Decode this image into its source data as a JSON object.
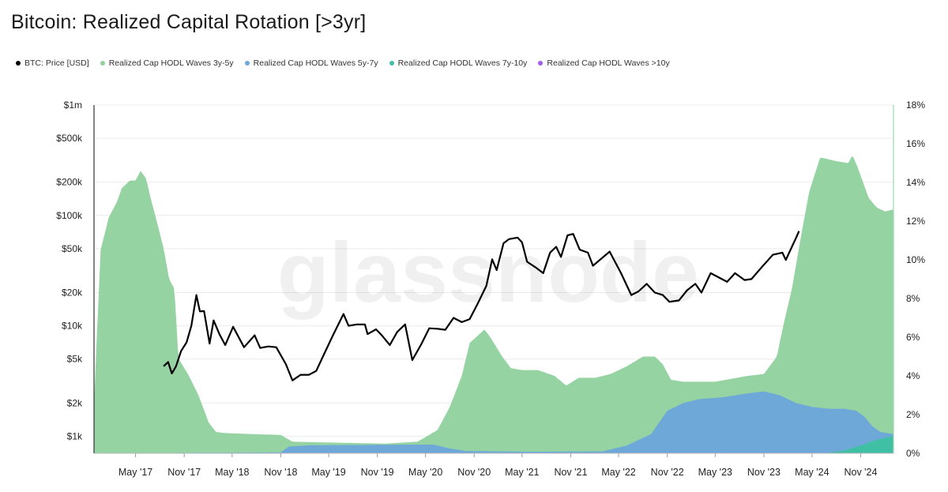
{
  "chart_data": {
    "type": "area",
    "title": "Bitcoin: Realized Capital Rotation [>3yr]",
    "watermark": "glassnode",
    "x_ticks": [
      "May '17",
      "Nov '17",
      "May '18",
      "Nov '18",
      "May '19",
      "Nov '19",
      "May '20",
      "Nov '20",
      "May '21",
      "Nov '21",
      "May '22",
      "Nov '22",
      "May '23",
      "Nov '23",
      "May '24",
      "Nov '24"
    ],
    "y_left": {
      "scale": "log",
      "min": 700,
      "max": 1000000,
      "ticks": [
        "$1k",
        "$2k",
        "$5k",
        "$10k",
        "$20k",
        "$50k",
        "$100k",
        "$200k",
        "$500k",
        "$1m"
      ]
    },
    "y_right": {
      "scale": "linear",
      "min": 0,
      "max": 18,
      "ticks": [
        "0%",
        "2%",
        "4%",
        "6%",
        "8%",
        "10%",
        "12%",
        "14%",
        "16%",
        "18%"
      ]
    },
    "legend_position": "top-left",
    "series": [
      {
        "name": "Realized Cap HODL Waves 3y-5y",
        "color": "#8fd19e",
        "axis": "right",
        "points": [
          [
            "2016-11-25",
            2.6
          ],
          [
            "2016-12-20",
            10.5
          ],
          [
            "2017-01-20",
            12.2
          ],
          [
            "2017-02-20",
            13.0
          ],
          [
            "2017-03-10",
            13.7
          ],
          [
            "2017-04-10",
            14.1
          ],
          [
            "2017-05-01",
            14.1
          ],
          [
            "2017-05-20",
            14.6
          ],
          [
            "2017-06-10",
            14.2
          ],
          [
            "2017-06-25",
            13.3
          ],
          [
            "2017-07-20",
            12.0
          ],
          [
            "2017-08-15",
            10.6
          ],
          [
            "2017-09-05",
            9.0
          ],
          [
            "2017-09-25",
            8.5
          ],
          [
            "2017-10-10",
            4.9
          ],
          [
            "2017-11-15",
            4.1
          ],
          [
            "2017-12-25",
            3.0
          ],
          [
            "2018-02-01",
            1.6
          ],
          [
            "2018-03-01",
            1.1
          ],
          [
            "2018-04-01",
            1.05
          ],
          [
            "2018-07-01",
            1.0
          ],
          [
            "2018-11-01",
            0.95
          ],
          [
            "2018-12-15",
            0.6
          ],
          [
            "2019-06-01",
            0.55
          ],
          [
            "2019-12-01",
            0.5
          ],
          [
            "2020-04-01",
            0.6
          ],
          [
            "2020-06-15",
            1.2
          ],
          [
            "2020-08-01",
            2.4
          ],
          [
            "2020-09-15",
            4.0
          ],
          [
            "2020-10-15",
            5.7
          ],
          [
            "2020-12-10",
            6.4
          ],
          [
            "2021-01-01",
            6.0
          ],
          [
            "2021-02-15",
            5.0
          ],
          [
            "2021-03-20",
            4.4
          ],
          [
            "2021-05-01",
            4.3
          ],
          [
            "2021-07-01",
            4.3
          ],
          [
            "2021-09-01",
            4.0
          ],
          [
            "2021-10-15",
            3.5
          ],
          [
            "2021-12-01",
            3.9
          ],
          [
            "2022-02-01",
            3.9
          ],
          [
            "2022-04-01",
            4.1
          ],
          [
            "2022-06-01",
            4.5
          ],
          [
            "2022-08-01",
            5.0
          ],
          [
            "2022-09-15",
            5.0
          ],
          [
            "2022-10-15",
            4.6
          ],
          [
            "2022-11-15",
            3.8
          ],
          [
            "2023-01-01",
            3.7
          ],
          [
            "2023-05-01",
            3.7
          ],
          [
            "2023-09-01",
            4.0
          ],
          [
            "2023-11-01",
            4.1
          ],
          [
            "2023-12-20",
            5.0
          ],
          [
            "2024-01-15",
            6.7
          ],
          [
            "2024-02-15",
            8.5
          ],
          [
            "2024-03-15",
            10.8
          ],
          [
            "2024-04-20",
            13.5
          ],
          [
            "2024-06-01",
            15.3
          ],
          [
            "2024-08-01",
            15.1
          ],
          [
            "2024-09-15",
            15.0
          ],
          [
            "2024-10-01",
            15.4
          ],
          [
            "2024-10-20",
            14.8
          ],
          [
            "2024-12-01",
            13.2
          ],
          [
            "2025-01-01",
            12.7
          ],
          [
            "2025-02-01",
            12.5
          ],
          [
            "2025-03-05",
            12.6
          ]
        ]
      },
      {
        "name": "Realized Cap HODL Waves 5y-7y",
        "color": "#6ea8d8",
        "axis": "right",
        "points": [
          [
            "2016-11-25",
            0
          ],
          [
            "2018-11-01",
            0.05
          ],
          [
            "2018-12-01",
            0.35
          ],
          [
            "2019-03-01",
            0.42
          ],
          [
            "2019-09-01",
            0.43
          ],
          [
            "2020-03-01",
            0.45
          ],
          [
            "2020-06-01",
            0.45
          ],
          [
            "2020-08-01",
            0.25
          ],
          [
            "2020-10-01",
            0.12
          ],
          [
            "2021-06-01",
            0.08
          ],
          [
            "2022-03-01",
            0.1
          ],
          [
            "2022-06-01",
            0.4
          ],
          [
            "2022-09-01",
            1.0
          ],
          [
            "2022-11-01",
            2.2
          ],
          [
            "2023-01-01",
            2.6
          ],
          [
            "2023-03-01",
            2.8
          ],
          [
            "2023-06-01",
            2.9
          ],
          [
            "2023-09-01",
            3.1
          ],
          [
            "2023-11-01",
            3.2
          ],
          [
            "2024-01-01",
            3.0
          ],
          [
            "2024-03-01",
            2.6
          ],
          [
            "2024-05-01",
            2.4
          ],
          [
            "2024-07-01",
            2.3
          ],
          [
            "2024-09-01",
            2.3
          ],
          [
            "2024-10-15",
            2.2
          ],
          [
            "2024-11-15",
            1.9
          ],
          [
            "2024-12-15",
            1.4
          ],
          [
            "2025-01-15",
            1.1
          ],
          [
            "2025-03-05",
            1.0
          ]
        ]
      },
      {
        "name": "Realized Cap HODL Waves 7y-10y",
        "color": "#3fbfa3",
        "axis": "right",
        "points": [
          [
            "2016-11-25",
            0
          ],
          [
            "2024-07-01",
            0.02
          ],
          [
            "2024-09-01",
            0.15
          ],
          [
            "2024-11-01",
            0.4
          ],
          [
            "2025-01-01",
            0.7
          ],
          [
            "2025-03-05",
            0.9
          ]
        ]
      },
      {
        "name": "Realized Cap HODL Waves >10y",
        "color": "#a45bf0",
        "axis": "right",
        "points": [
          [
            "2016-11-25",
            0
          ],
          [
            "2025-03-05",
            0
          ]
        ]
      },
      {
        "name": "BTC: Price [USD]",
        "color": "#000000",
        "axis": "left",
        "type": "line",
        "points": [
          [
            "2017-08-15",
            4300
          ],
          [
            "2017-09-01",
            4700
          ],
          [
            "2017-09-15",
            3700
          ],
          [
            "2017-10-01",
            4300
          ],
          [
            "2017-10-20",
            5900
          ],
          [
            "2017-11-10",
            7100
          ],
          [
            "2017-11-28",
            10000
          ],
          [
            "2017-12-17",
            19000
          ],
          [
            "2017-12-30",
            13500
          ],
          [
            "2018-01-15",
            13600
          ],
          [
            "2018-02-05",
            6900
          ],
          [
            "2018-02-20",
            11200
          ],
          [
            "2018-03-15",
            8300
          ],
          [
            "2018-04-05",
            6700
          ],
          [
            "2018-05-05",
            9800
          ],
          [
            "2018-06-15",
            6400
          ],
          [
            "2018-07-25",
            8200
          ],
          [
            "2018-08-15",
            6300
          ],
          [
            "2018-09-15",
            6500
          ],
          [
            "2018-10-15",
            6400
          ],
          [
            "2018-11-20",
            4500
          ],
          [
            "2018-12-15",
            3200
          ],
          [
            "2019-01-15",
            3600
          ],
          [
            "2019-02-15",
            3600
          ],
          [
            "2019-03-15",
            3900
          ],
          [
            "2019-04-05",
            5000
          ],
          [
            "2019-05-15",
            8000
          ],
          [
            "2019-06-26",
            12800
          ],
          [
            "2019-07-15",
            10000
          ],
          [
            "2019-08-15",
            10300
          ],
          [
            "2019-09-15",
            10300
          ],
          [
            "2019-09-25",
            8400
          ],
          [
            "2019-10-27",
            9300
          ],
          [
            "2019-11-20",
            8100
          ],
          [
            "2019-12-18",
            6700
          ],
          [
            "2020-01-15",
            8800
          ],
          [
            "2020-02-14",
            10300
          ],
          [
            "2020-03-12",
            4900
          ],
          [
            "2020-04-15",
            6800
          ],
          [
            "2020-05-15",
            9500
          ],
          [
            "2020-06-15",
            9400
          ],
          [
            "2020-07-15",
            9200
          ],
          [
            "2020-08-15",
            11800
          ],
          [
            "2020-09-15",
            10800
          ],
          [
            "2020-10-15",
            11500
          ],
          [
            "2020-11-15",
            16000
          ],
          [
            "2020-12-17",
            23000
          ],
          [
            "2021-01-08",
            40000
          ],
          [
            "2021-01-25",
            32000
          ],
          [
            "2021-02-20",
            56000
          ],
          [
            "2021-03-13",
            61000
          ],
          [
            "2021-04-14",
            63000
          ],
          [
            "2021-05-01",
            57000
          ],
          [
            "2021-05-20",
            38000
          ],
          [
            "2021-06-20",
            34000
          ],
          [
            "2021-07-20",
            30000
          ],
          [
            "2021-08-15",
            46000
          ],
          [
            "2021-09-07",
            52000
          ],
          [
            "2021-09-25",
            42000
          ],
          [
            "2021-10-20",
            66000
          ],
          [
            "2021-11-10",
            68000
          ],
          [
            "2021-12-05",
            49000
          ],
          [
            "2022-01-05",
            46000
          ],
          [
            "2022-01-24",
            35000
          ],
          [
            "2022-03-28",
            47000
          ],
          [
            "2022-05-10",
            30000
          ],
          [
            "2022-06-18",
            19000
          ],
          [
            "2022-07-15",
            20500
          ],
          [
            "2022-08-15",
            24000
          ],
          [
            "2022-09-15",
            20000
          ],
          [
            "2022-10-15",
            19000
          ],
          [
            "2022-11-09",
            16500
          ],
          [
            "2022-12-15",
            17000
          ],
          [
            "2023-01-15",
            21000
          ],
          [
            "2023-02-15",
            24000
          ],
          [
            "2023-03-10",
            20000
          ],
          [
            "2023-04-14",
            30000
          ],
          [
            "2023-06-15",
            25000
          ],
          [
            "2023-07-15",
            30000
          ],
          [
            "2023-08-20",
            26000
          ],
          [
            "2023-09-15",
            26500
          ],
          [
            "2023-10-24",
            34000
          ],
          [
            "2023-12-05",
            44000
          ],
          [
            "2024-01-10",
            46000
          ],
          [
            "2024-01-23",
            39500
          ],
          [
            "2024-02-15",
            52000
          ],
          [
            "2024-03-01",
            62000
          ],
          [
            "2024-03-13",
            72000
          ]
        ]
      }
    ],
    "x_range": [
      "2016-11-25",
      "2025-03-05"
    ]
  }
}
